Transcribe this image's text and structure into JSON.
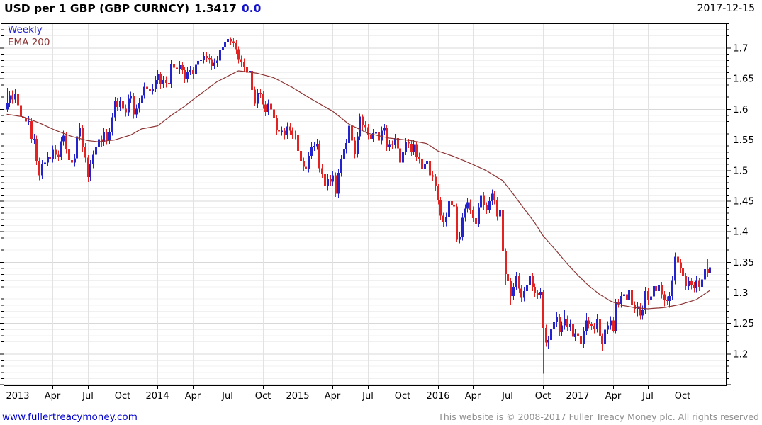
{
  "header": {
    "instrument": "USD per 1 GBP (GBP CURNCY)",
    "last_price": "1.3417",
    "change": "0.0",
    "date": "2017-12-15"
  },
  "legend": {
    "series_label": "Weekly",
    "overlay_label": "EMA 200"
  },
  "footer": {
    "site_url": "www.fullertreacymoney.com",
    "copyright": "This website is © 2008-2017 Fuller Treacy Money plc. All rights reserved"
  },
  "colors": {
    "up_candle": "#2424cc",
    "down_candle": "#e32222",
    "ema_line": "#8e3434",
    "weekly_label": "#2222cc",
    "change_text": "#1414cc",
    "grid_minor": "#f0f0f0",
    "grid_major": "#d8d8d8",
    "grid_vertical": "#e2e2e2",
    "frame": "#000000",
    "axis_text": "#000000"
  },
  "chart_data": {
    "type": "candlestick",
    "timeframe": "weekly",
    "title": "USD per 1 GBP (GBP CURNCY)",
    "last_close": 1.3417,
    "y_axis": {
      "side": "right",
      "min": 1.149,
      "max": 1.7405,
      "major_step": 0.05,
      "minor_step": 0.01,
      "tick_labels": [
        "1.2",
        "1.25",
        "1.3",
        "1.35",
        "1.4",
        "1.45",
        "1.5",
        "1.55",
        "1.6",
        "1.65",
        "1.7"
      ]
    },
    "x_axis": {
      "tick_labels": [
        "2013",
        "Apr",
        "Jul",
        "Oct",
        "2014",
        "Apr",
        "Jul",
        "Oct",
        "2015",
        "Apr",
        "Jul",
        "Oct",
        "2016",
        "Apr",
        "Jul",
        "Oct",
        "2017",
        "Apr",
        "Jul",
        "Oct"
      ],
      "tick_week_indices": [
        4,
        17,
        30,
        43,
        56,
        69,
        82,
        95,
        108,
        121,
        134,
        147,
        160,
        173,
        186,
        199,
        212,
        225,
        238,
        251
      ]
    },
    "open_rule": "each_open_equals_previous_close",
    "first_open": 1.6,
    "weeks_hlc": [
      [
        1.635,
        1.596,
        1.61
      ],
      [
        1.63,
        1.604,
        1.623
      ],
      [
        1.631,
        1.609,
        1.616
      ],
      [
        1.633,
        1.61,
        1.626
      ],
      [
        1.632,
        1.6,
        1.607
      ],
      [
        1.613,
        1.581,
        1.588
      ],
      [
        1.597,
        1.578,
        1.586
      ],
      [
        1.592,
        1.573,
        1.58
      ],
      [
        1.589,
        1.574,
        1.581
      ],
      [
        1.586,
        1.545,
        1.552
      ],
      [
        1.56,
        1.544,
        1.552
      ],
      [
        1.557,
        1.509,
        1.516
      ],
      [
        1.521,
        1.484,
        1.492
      ],
      [
        1.517,
        1.486,
        1.511
      ],
      [
        1.52,
        1.505,
        1.513
      ],
      [
        1.53,
        1.507,
        1.523
      ],
      [
        1.529,
        1.512,
        1.519
      ],
      [
        1.541,
        1.513,
        1.534
      ],
      [
        1.542,
        1.519,
        1.526
      ],
      [
        1.533,
        1.516,
        1.523
      ],
      [
        1.555,
        1.517,
        1.548
      ],
      [
        1.565,
        1.541,
        1.557
      ],
      [
        1.563,
        1.528,
        1.535
      ],
      [
        1.541,
        1.503,
        1.517
      ],
      [
        1.524,
        1.506,
        1.513
      ],
      [
        1.527,
        1.506,
        1.52
      ],
      [
        1.563,
        1.514,
        1.556
      ],
      [
        1.577,
        1.549,
        1.57
      ],
      [
        1.575,
        1.531,
        1.539
      ],
      [
        1.545,
        1.513,
        1.521
      ],
      [
        1.525,
        1.481,
        1.489
      ],
      [
        1.517,
        1.483,
        1.51
      ],
      [
        1.533,
        1.504,
        1.526
      ],
      [
        1.545,
        1.52,
        1.538
      ],
      [
        1.558,
        1.532,
        1.551
      ],
      [
        1.557,
        1.539,
        1.546
      ],
      [
        1.57,
        1.54,
        1.563
      ],
      [
        1.568,
        1.543,
        1.55
      ],
      [
        1.57,
        1.544,
        1.563
      ],
      [
        1.594,
        1.557,
        1.587
      ],
      [
        1.62,
        1.581,
        1.613
      ],
      [
        1.619,
        1.597,
        1.604
      ],
      [
        1.62,
        1.598,
        1.613
      ],
      [
        1.618,
        1.594,
        1.601
      ],
      [
        1.608,
        1.588,
        1.595
      ],
      [
        1.624,
        1.589,
        1.617
      ],
      [
        1.629,
        1.611,
        1.622
      ],
      [
        1.627,
        1.585,
        1.592
      ],
      [
        1.608,
        1.586,
        1.601
      ],
      [
        1.618,
        1.595,
        1.611
      ],
      [
        1.63,
        1.605,
        1.623
      ],
      [
        1.644,
        1.617,
        1.637
      ],
      [
        1.645,
        1.627,
        1.634
      ],
      [
        1.641,
        1.623,
        1.63
      ],
      [
        1.641,
        1.624,
        1.634
      ],
      [
        1.655,
        1.628,
        1.648
      ],
      [
        1.664,
        1.641,
        1.657
      ],
      [
        1.662,
        1.634,
        1.641
      ],
      [
        1.655,
        1.635,
        1.648
      ],
      [
        1.654,
        1.636,
        1.643
      ],
      [
        1.65,
        1.63,
        1.641
      ],
      [
        1.681,
        1.635,
        1.674
      ],
      [
        1.682,
        1.661,
        1.668
      ],
      [
        1.676,
        1.658,
        1.665
      ],
      [
        1.679,
        1.658,
        1.672
      ],
      [
        1.678,
        1.657,
        1.664
      ],
      [
        1.669,
        1.643,
        1.65
      ],
      [
        1.669,
        1.644,
        1.662
      ],
      [
        1.671,
        1.656,
        1.664
      ],
      [
        1.669,
        1.65,
        1.657
      ],
      [
        1.68,
        1.651,
        1.673
      ],
      [
        1.686,
        1.666,
        1.679
      ],
      [
        1.688,
        1.672,
        1.681
      ],
      [
        1.694,
        1.675,
        1.687
      ],
      [
        1.693,
        1.677,
        1.684
      ],
      [
        1.691,
        1.675,
        1.682
      ],
      [
        1.687,
        1.664,
        1.671
      ],
      [
        1.683,
        1.665,
        1.676
      ],
      [
        1.687,
        1.67,
        1.68
      ],
      [
        1.704,
        1.674,
        1.697
      ],
      [
        1.709,
        1.691,
        1.702
      ],
      [
        1.716,
        1.696,
        1.71
      ],
      [
        1.719,
        1.704,
        1.715
      ],
      [
        1.718,
        1.705,
        1.711
      ],
      [
        1.716,
        1.701,
        1.708
      ],
      [
        1.713,
        1.691,
        1.698
      ],
      [
        1.703,
        1.675,
        1.682
      ],
      [
        1.688,
        1.67,
        1.677
      ],
      [
        1.683,
        1.662,
        1.669
      ],
      [
        1.674,
        1.653,
        1.66
      ],
      [
        1.67,
        1.653,
        1.663
      ],
      [
        1.668,
        1.625,
        1.632
      ],
      [
        1.637,
        1.605,
        1.609
      ],
      [
        1.634,
        1.603,
        1.627
      ],
      [
        1.634,
        1.618,
        1.625
      ],
      [
        1.63,
        1.601,
        1.608
      ],
      [
        1.613,
        1.589,
        1.596
      ],
      [
        1.616,
        1.59,
        1.609
      ],
      [
        1.614,
        1.593,
        1.6
      ],
      [
        1.605,
        1.579,
        1.586
      ],
      [
        1.591,
        1.559,
        1.566
      ],
      [
        1.573,
        1.557,
        1.564
      ],
      [
        1.572,
        1.557,
        1.565
      ],
      [
        1.57,
        1.551,
        1.558
      ],
      [
        1.579,
        1.552,
        1.572
      ],
      [
        1.577,
        1.558,
        1.565
      ],
      [
        1.571,
        1.552,
        1.559
      ],
      [
        1.565,
        1.551,
        1.558
      ],
      [
        1.562,
        1.525,
        1.532
      ],
      [
        1.537,
        1.509,
        1.516
      ],
      [
        1.521,
        1.499,
        1.506
      ],
      [
        1.512,
        1.496,
        1.503
      ],
      [
        1.531,
        1.497,
        1.524
      ],
      [
        1.546,
        1.518,
        1.539
      ],
      [
        1.547,
        1.532,
        1.54
      ],
      [
        1.552,
        1.534,
        1.544
      ],
      [
        1.549,
        1.497,
        1.504
      ],
      [
        1.51,
        1.488,
        1.495
      ],
      [
        1.5,
        1.468,
        1.475
      ],
      [
        1.494,
        1.468,
        1.487
      ],
      [
        1.493,
        1.475,
        1.482
      ],
      [
        1.499,
        1.475,
        1.492
      ],
      [
        1.497,
        1.457,
        1.462
      ],
      [
        1.503,
        1.456,
        1.496
      ],
      [
        1.525,
        1.49,
        1.518
      ],
      [
        1.542,
        1.512,
        1.535
      ],
      [
        1.552,
        1.528,
        1.545
      ],
      [
        1.58,
        1.539,
        1.573
      ],
      [
        1.578,
        1.542,
        1.549
      ],
      [
        1.554,
        1.52,
        1.527
      ],
      [
        1.563,
        1.521,
        1.556
      ],
      [
        1.593,
        1.55,
        1.588
      ],
      [
        1.592,
        1.567,
        1.574
      ],
      [
        1.581,
        1.564,
        1.571
      ],
      [
        1.576,
        1.551,
        1.558
      ],
      [
        1.563,
        1.545,
        1.552
      ],
      [
        1.568,
        1.546,
        1.561
      ],
      [
        1.569,
        1.554,
        1.562
      ],
      [
        1.567,
        1.542,
        1.549
      ],
      [
        1.572,
        1.543,
        1.565
      ],
      [
        1.576,
        1.558,
        1.569
      ],
      [
        1.574,
        1.532,
        1.539
      ],
      [
        1.55,
        1.532,
        1.543
      ],
      [
        1.549,
        1.535,
        1.542
      ],
      [
        1.56,
        1.536,
        1.553
      ],
      [
        1.558,
        1.529,
        1.536
      ],
      [
        1.541,
        1.506,
        1.513
      ],
      [
        1.538,
        1.507,
        1.531
      ],
      [
        1.553,
        1.525,
        1.546
      ],
      [
        1.552,
        1.537,
        1.544
      ],
      [
        1.549,
        1.524,
        1.531
      ],
      [
        1.55,
        1.525,
        1.543
      ],
      [
        1.548,
        1.516,
        1.523
      ],
      [
        1.529,
        1.512,
        1.519
      ],
      [
        1.524,
        1.496,
        1.503
      ],
      [
        1.518,
        1.496,
        1.511
      ],
      [
        1.523,
        1.504,
        1.516
      ],
      [
        1.521,
        1.485,
        1.492
      ],
      [
        1.499,
        1.483,
        1.49
      ],
      [
        1.495,
        1.467,
        1.474
      ],
      [
        1.478,
        1.445,
        1.452
      ],
      [
        1.457,
        1.419,
        1.426
      ],
      [
        1.431,
        1.408,
        1.416
      ],
      [
        1.431,
        1.409,
        1.424
      ],
      [
        1.457,
        1.418,
        1.45
      ],
      [
        1.455,
        1.437,
        1.444
      ],
      [
        1.45,
        1.434,
        1.441
      ],
      [
        1.446,
        1.384,
        1.387
      ],
      [
        1.399,
        1.381,
        1.392
      ],
      [
        1.43,
        1.386,
        1.423
      ],
      [
        1.445,
        1.417,
        1.438
      ],
      [
        1.455,
        1.431,
        1.448
      ],
      [
        1.453,
        1.429,
        1.436
      ],
      [
        1.441,
        1.415,
        1.422
      ],
      [
        1.427,
        1.404,
        1.413
      ],
      [
        1.447,
        1.407,
        1.44
      ],
      [
        1.467,
        1.434,
        1.46
      ],
      [
        1.465,
        1.436,
        1.443
      ],
      [
        1.448,
        1.429,
        1.436
      ],
      [
        1.457,
        1.43,
        1.45
      ],
      [
        1.469,
        1.444,
        1.462
      ],
      [
        1.467,
        1.445,
        1.452
      ],
      [
        1.457,
        1.418,
        1.425
      ],
      [
        1.443,
        1.411,
        1.436
      ],
      [
        1.502,
        1.323,
        1.368
      ],
      [
        1.373,
        1.312,
        1.331
      ],
      [
        1.336,
        1.306,
        1.319
      ],
      [
        1.324,
        1.28,
        1.295
      ],
      [
        1.317,
        1.289,
        1.31
      ],
      [
        1.334,
        1.304,
        1.327
      ],
      [
        1.332,
        1.3,
        1.307
      ],
      [
        1.312,
        1.285,
        1.292
      ],
      [
        1.31,
        1.286,
        1.303
      ],
      [
        1.32,
        1.296,
        1.313
      ],
      [
        1.344,
        1.307,
        1.328
      ],
      [
        1.333,
        1.303,
        1.31
      ],
      [
        1.315,
        1.293,
        1.3
      ],
      [
        1.305,
        1.29,
        1.297
      ],
      [
        1.309,
        1.291,
        1.302
      ],
      [
        1.305,
        1.168,
        1.243
      ],
      [
        1.248,
        1.212,
        1.219
      ],
      [
        1.23,
        1.208,
        1.223
      ],
      [
        1.248,
        1.215,
        1.241
      ],
      [
        1.259,
        1.234,
        1.252
      ],
      [
        1.268,
        1.245,
        1.26
      ],
      [
        1.265,
        1.229,
        1.236
      ],
      [
        1.254,
        1.229,
        1.247
      ],
      [
        1.272,
        1.24,
        1.258
      ],
      [
        1.263,
        1.237,
        1.244
      ],
      [
        1.256,
        1.237,
        1.249
      ],
      [
        1.254,
        1.221,
        1.228
      ],
      [
        1.241,
        1.221,
        1.234
      ],
      [
        1.241,
        1.222,
        1.229
      ],
      [
        1.234,
        1.199,
        1.216
      ],
      [
        1.244,
        1.21,
        1.237
      ],
      [
        1.267,
        1.231,
        1.255
      ],
      [
        1.26,
        1.242,
        1.249
      ],
      [
        1.253,
        1.239,
        1.246
      ],
      [
        1.251,
        1.234,
        1.241
      ],
      [
        1.265,
        1.235,
        1.258
      ],
      [
        1.263,
        1.222,
        1.229
      ],
      [
        1.234,
        1.205,
        1.217
      ],
      [
        1.247,
        1.211,
        1.24
      ],
      [
        1.254,
        1.233,
        1.247
      ],
      [
        1.262,
        1.24,
        1.255
      ],
      [
        1.26,
        1.235,
        1.237
      ],
      [
        1.29,
        1.234,
        1.285
      ],
      [
        1.29,
        1.276,
        1.282
      ],
      [
        1.302,
        1.276,
        1.295
      ],
      [
        1.306,
        1.287,
        1.298
      ],
      [
        1.305,
        1.282,
        1.289
      ],
      [
        1.311,
        1.283,
        1.304
      ],
      [
        1.309,
        1.265,
        1.28
      ],
      [
        1.286,
        1.267,
        1.274
      ],
      [
        1.285,
        1.262,
        1.278
      ],
      [
        1.283,
        1.256,
        1.263
      ],
      [
        1.279,
        1.256,
        1.272
      ],
      [
        1.31,
        1.266,
        1.303
      ],
      [
        1.308,
        1.281,
        1.288
      ],
      [
        1.301,
        1.281,
        1.294
      ],
      [
        1.318,
        1.288,
        1.311
      ],
      [
        1.316,
        1.296,
        1.303
      ],
      [
        1.323,
        1.297,
        1.313
      ],
      [
        1.318,
        1.291,
        1.298
      ],
      [
        1.303,
        1.278,
        1.288
      ],
      [
        1.294,
        1.28,
        1.287
      ],
      [
        1.302,
        1.276,
        1.295
      ],
      [
        1.327,
        1.289,
        1.32
      ],
      [
        1.366,
        1.314,
        1.359
      ],
      [
        1.365,
        1.343,
        1.35
      ],
      [
        1.356,
        1.333,
        1.34
      ],
      [
        1.345,
        1.321,
        1.328
      ],
      [
        1.333,
        1.304,
        1.311
      ],
      [
        1.326,
        1.305,
        1.319
      ],
      [
        1.324,
        1.306,
        1.313
      ],
      [
        1.318,
        1.301,
        1.308
      ],
      [
        1.327,
        1.301,
        1.32
      ],
      [
        1.325,
        1.303,
        1.31
      ],
      [
        1.329,
        1.303,
        1.322
      ],
      [
        1.346,
        1.316,
        1.339
      ],
      [
        1.355,
        1.326,
        1.333
      ],
      [
        1.352,
        1.329,
        1.3417
      ]
    ],
    "ema200": {
      "anchor_weeks": [
        0,
        6,
        12,
        18,
        24,
        30,
        34,
        40,
        46,
        50,
        56,
        61,
        66,
        71,
        78,
        86,
        93,
        99,
        106,
        113,
        121,
        127,
        134,
        142,
        150,
        156,
        160,
        166,
        172,
        178,
        184,
        188,
        192,
        196,
        199,
        204,
        208,
        212,
        216,
        220,
        224,
        228,
        233,
        238,
        244,
        250,
        256,
        261
      ],
      "anchor_values": [
        1.592,
        1.588,
        1.578,
        1.566,
        1.556,
        1.549,
        1.547,
        1.55,
        1.558,
        1.568,
        1.573,
        1.59,
        1.605,
        1.622,
        1.645,
        1.663,
        1.659,
        1.652,
        1.636,
        1.617,
        1.597,
        1.576,
        1.561,
        1.553,
        1.549,
        1.544,
        1.532,
        1.523,
        1.512,
        1.5,
        1.484,
        1.462,
        1.438,
        1.415,
        1.394,
        1.369,
        1.348,
        1.329,
        1.312,
        1.298,
        1.287,
        1.28,
        1.276,
        1.274,
        1.276,
        1.281,
        1.289,
        1.304
      ]
    }
  }
}
